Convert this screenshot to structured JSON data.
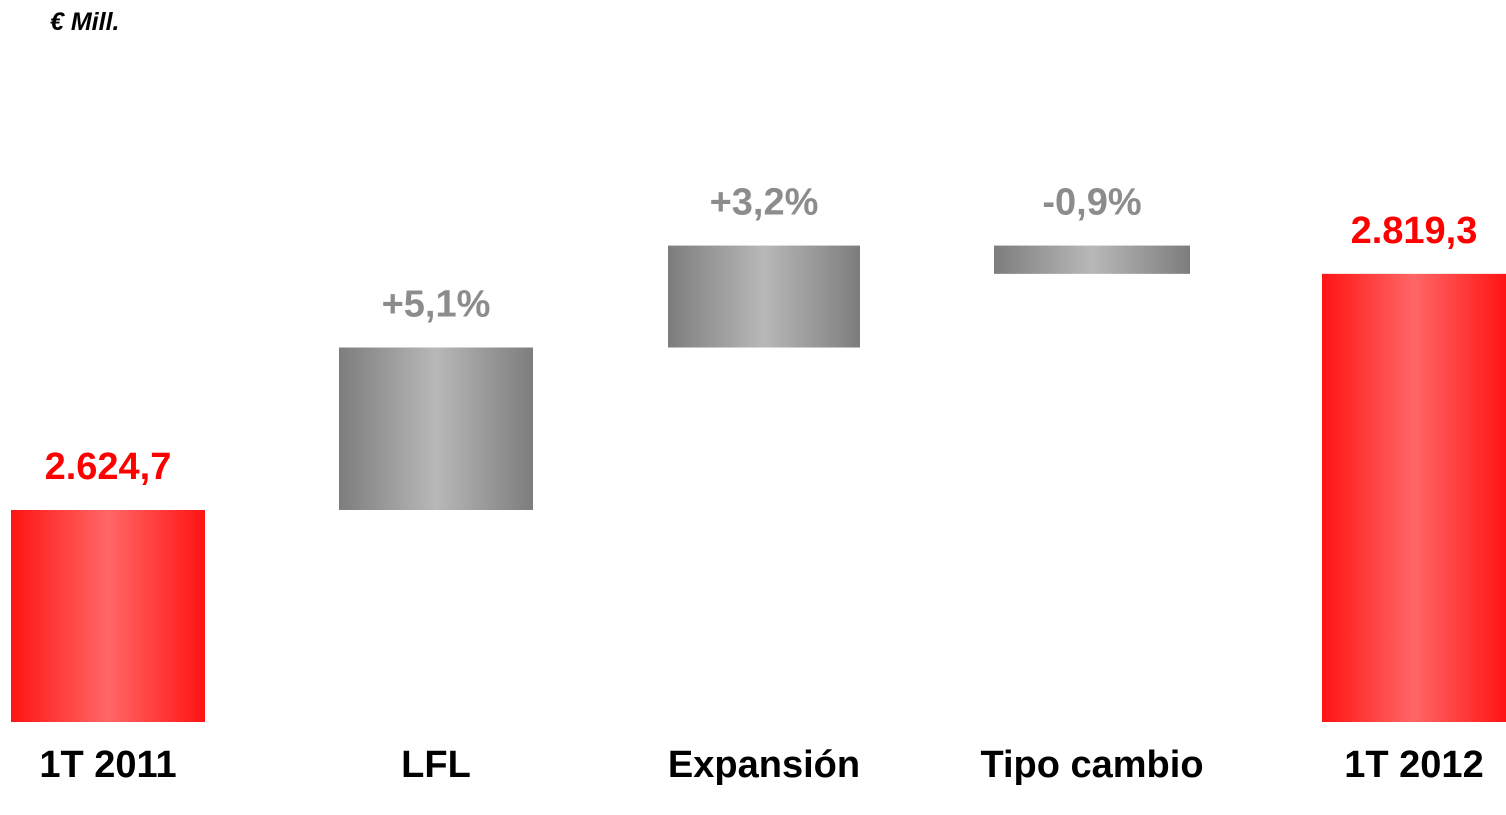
{
  "chart_data": {
    "type": "bar",
    "subtype": "waterfall",
    "unit_label": "€ Mill.",
    "categories": [
      "1T 2011",
      "LFL",
      "Expansión",
      "Tipo cambio",
      "1T 2012"
    ],
    "data_labels": [
      "2.624,7",
      "+5,1%",
      "+3,2%",
      "-0,9%",
      "2.819,3"
    ],
    "values": [
      2624.7,
      133.9,
      84.0,
      -23.3,
      2819.3
    ],
    "kinds": [
      "total",
      "increase",
      "increase",
      "decrease",
      "total"
    ],
    "colors": {
      "total": "#ff1a1a",
      "change": "#9a9a9a",
      "total_label": "#ff0000",
      "change_label": "#8c8c8c"
    },
    "grid": false,
    "legend": "none"
  }
}
